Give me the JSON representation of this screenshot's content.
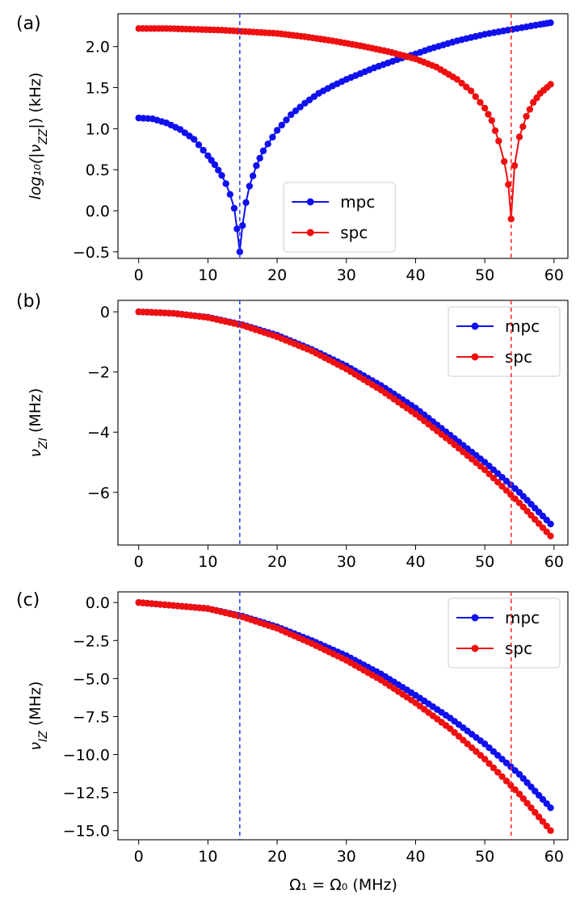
{
  "figure": {
    "panel_labels": [
      "(a)",
      "(b)",
      "(c)"
    ],
    "shared_xlabel": "Ω₁ = Ω₀ (MHz)",
    "vlines": [
      {
        "x": 14.6,
        "color": "#1f3cff",
        "style": "dashed"
      },
      {
        "x": 53.8,
        "color": "#ff2020",
        "style": "dashed"
      }
    ]
  },
  "colors": {
    "mpc": "#1010ee",
    "spc": "#ee1010"
  },
  "chart_data": [
    {
      "type": "line",
      "panel": "(a)",
      "ylabel": "log₁₀(|ν_ZZ|) (kHz)",
      "xlim": [
        -3,
        62
      ],
      "ylim": [
        -0.58,
        2.4
      ],
      "xticks": [
        0,
        10,
        20,
        30,
        40,
        50,
        60
      ],
      "yticks": [
        -0.5,
        0.0,
        0.5,
        1.0,
        1.5,
        2.0
      ],
      "ytick_labels": [
        "−0.5",
        "0.0",
        "0.5",
        "1.0",
        "1.5",
        "2.0"
      ],
      "legend": {
        "position": "lower-center",
        "entries": [
          "mpc",
          "spc"
        ]
      },
      "series": [
        {
          "name": "mpc",
          "color": "#1010ee",
          "x": [
            0,
            2,
            4,
            6,
            8,
            10,
            11,
            12,
            12.6,
            13.2,
            13.8,
            14.2,
            14.6,
            15,
            15.5,
            16,
            17,
            18,
            20,
            22,
            24,
            26,
            28,
            30,
            32,
            34,
            36,
            38,
            40,
            42,
            44,
            46,
            48,
            50,
            52,
            54,
            56,
            58,
            59.5
          ],
          "y": [
            1.13,
            1.12,
            1.07,
            0.99,
            0.87,
            0.67,
            0.56,
            0.43,
            0.33,
            0.2,
            0.03,
            -0.22,
            -0.5,
            -0.18,
            0.1,
            0.3,
            0.55,
            0.73,
            0.98,
            1.17,
            1.31,
            1.43,
            1.52,
            1.6,
            1.67,
            1.74,
            1.8,
            1.86,
            1.91,
            1.97,
            2.02,
            2.07,
            2.11,
            2.15,
            2.18,
            2.21,
            2.24,
            2.27,
            2.29
          ]
        },
        {
          "name": "spc",
          "color": "#ee1010",
          "x": [
            0,
            4,
            8,
            12,
            16,
            20,
            24,
            28,
            32,
            36,
            40,
            43,
            46,
            48,
            50,
            51,
            52,
            52.8,
            53.4,
            53.8,
            54.3,
            55,
            56,
            57,
            58,
            59.5
          ],
          "y": [
            2.22,
            2.22,
            2.21,
            2.2,
            2.18,
            2.16,
            2.12,
            2.07,
            2.01,
            1.94,
            1.85,
            1.75,
            1.6,
            1.46,
            1.25,
            1.1,
            0.85,
            0.6,
            0.32,
            -0.1,
            0.55,
            0.9,
            1.15,
            1.32,
            1.43,
            1.54
          ]
        }
      ]
    },
    {
      "type": "line",
      "panel": "(b)",
      "ylabel": "ν_ZI (MHz)",
      "xlim": [
        -3,
        62
      ],
      "ylim": [
        -7.75,
        0.38
      ],
      "xticks": [
        0,
        10,
        20,
        30,
        40,
        50,
        60
      ],
      "yticks": [
        0,
        -2,
        -4,
        -6
      ],
      "ytick_labels": [
        "0",
        "−2",
        "−4",
        "−6"
      ],
      "legend": {
        "position": "upper-right",
        "entries": [
          "mpc",
          "spc"
        ]
      },
      "series": [
        {
          "name": "mpc",
          "color": "#1010ee",
          "x": [
            0,
            5,
            10,
            15,
            20,
            25,
            30,
            35,
            40,
            45,
            50,
            55,
            59.5
          ],
          "y": [
            0,
            -0.05,
            -0.18,
            -0.43,
            -0.78,
            -1.25,
            -1.8,
            -2.45,
            -3.2,
            -4.1,
            -5.0,
            -6.0,
            -7.05
          ]
        },
        {
          "name": "spc",
          "color": "#ee1010",
          "x": [
            0,
            5,
            10,
            15,
            20,
            25,
            30,
            35,
            40,
            45,
            50,
            55,
            59.5
          ],
          "y": [
            0,
            -0.05,
            -0.19,
            -0.45,
            -0.83,
            -1.3,
            -1.9,
            -2.6,
            -3.4,
            -4.3,
            -5.25,
            -6.35,
            -7.45
          ]
        }
      ]
    },
    {
      "type": "line",
      "panel": "(c)",
      "ylabel": "ν_IZ (MHz)",
      "xlabel": "Ω₁ = Ω₀ (MHz)",
      "xlim": [
        -3,
        62
      ],
      "ylim": [
        -15.6,
        0.7
      ],
      "xticks": [
        0,
        10,
        20,
        30,
        40,
        50,
        60
      ],
      "yticks": [
        0.0,
        -2.5,
        -5.0,
        -7.5,
        -10.0,
        -12.5,
        -15.0
      ],
      "ytick_labels": [
        "0.0",
        "−2.5",
        "−5.0",
        "−7.5",
        "−10.0",
        "−12.5",
        "−15.0"
      ],
      "legend": {
        "position": "upper-right",
        "entries": [
          "mpc",
          "spc"
        ]
      },
      "series": [
        {
          "name": "mpc",
          "color": "#1010ee",
          "x": [
            0,
            5,
            10,
            15,
            20,
            25,
            30,
            35,
            40,
            45,
            50,
            55,
            59.5
          ],
          "y": [
            0,
            -0.2,
            -0.4,
            -0.9,
            -1.6,
            -2.5,
            -3.5,
            -4.7,
            -6.1,
            -7.6,
            -9.3,
            -11.3,
            -13.5
          ]
        },
        {
          "name": "spc",
          "color": "#ee1010",
          "x": [
            0,
            5,
            10,
            15,
            20,
            25,
            30,
            35,
            40,
            45,
            50,
            55,
            59.5
          ],
          "y": [
            0,
            -0.2,
            -0.4,
            -0.95,
            -1.7,
            -2.7,
            -3.8,
            -5.1,
            -6.6,
            -8.3,
            -10.3,
            -12.6,
            -15.0
          ]
        }
      ]
    }
  ]
}
